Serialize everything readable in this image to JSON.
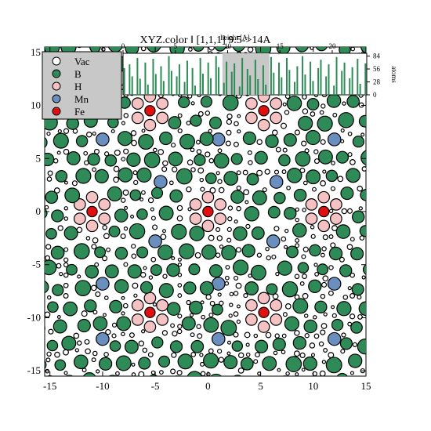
{
  "chart_data": {
    "type": "scatter",
    "title": "XYZ.color ‖  [1,1,1]  9.5->14A",
    "xlim": [
      -15.5,
      15
    ],
    "ylim": [
      -15.5,
      15.5
    ],
    "x_ticks": [
      -15,
      -10,
      -5,
      0,
      5,
      10,
      15
    ],
    "y_ticks": [
      -15,
      -10,
      -5,
      0,
      5,
      10,
      15
    ],
    "legend": {
      "placement": "top-left",
      "entries": [
        {
          "name": "Vac",
          "color": "#ffffff"
        },
        {
          "name": "B",
          "color": "#2e8b57"
        },
        {
          "name": "H",
          "color": "#f4c2c2"
        },
        {
          "name": "Mn",
          "color": "#6a8fbf"
        },
        {
          "name": "Fe",
          "color": "#e01010"
        }
      ]
    },
    "centers": {
      "Fe": [
        [
          -5.5,
          9.5
        ],
        [
          5.3,
          9.5
        ],
        [
          -11,
          0
        ],
        [
          0,
          0
        ],
        [
          11,
          0
        ],
        [
          -5.5,
          -9.5
        ],
        [
          5.3,
          -9.5
        ]
      ],
      "Mn": [
        [
          -10,
          6.8
        ],
        [
          1,
          6.8
        ],
        [
          12,
          6.8
        ],
        [
          -4.5,
          2.8
        ],
        [
          6.5,
          2.8
        ],
        [
          -5,
          -2.8
        ],
        [
          6.2,
          -2.8
        ],
        [
          -10,
          -6.8
        ],
        [
          1,
          -6.8
        ],
        [
          12,
          -6.8
        ],
        [
          -10,
          -12
        ],
        [
          1,
          -12
        ],
        [
          12,
          -12
        ]
      ]
    },
    "inset_histogram": {
      "xlabel": "height [A]",
      "ylabel": "atoms",
      "x_ticks": [
        0,
        5,
        10,
        15,
        20
      ],
      "y_ticks": [
        0,
        28,
        56,
        84
      ],
      "xlim": [
        0,
        23.3
      ],
      "ylim": [
        0,
        90
      ],
      "selected_range": [
        9.5,
        14
      ],
      "colors": {
        "B": "#2e8b57",
        "H": "#f4c2c2",
        "Fe": "#e01010",
        "Mn": "#6a8fbf"
      },
      "B_counts": [
        58,
        0,
        66,
        40,
        0,
        80,
        35,
        0,
        70,
        22,
        0,
        78,
        45,
        0,
        62,
        30,
        0,
        84,
        52,
        0,
        40,
        66,
        0,
        28,
        74,
        0,
        58,
        20,
        0,
        80,
        46,
        0,
        70,
        36,
        0,
        84,
        60,
        0,
        26,
        72,
        0,
        50,
        68,
        0,
        18,
        80,
        0,
        56,
        42,
        0,
        76,
        34,
        0,
        64,
        22,
        0,
        82,
        48,
        0,
        70,
        38,
        0,
        80,
        54,
        0,
        28,
        62,
        0,
        84,
        44,
        0,
        72,
        30,
        0,
        58,
        76,
        0,
        40,
        66,
        0,
        20,
        82,
        0,
        52,
        70,
        0,
        36,
        60,
        0,
        78,
        24,
        0,
        68
      ]
    }
  }
}
